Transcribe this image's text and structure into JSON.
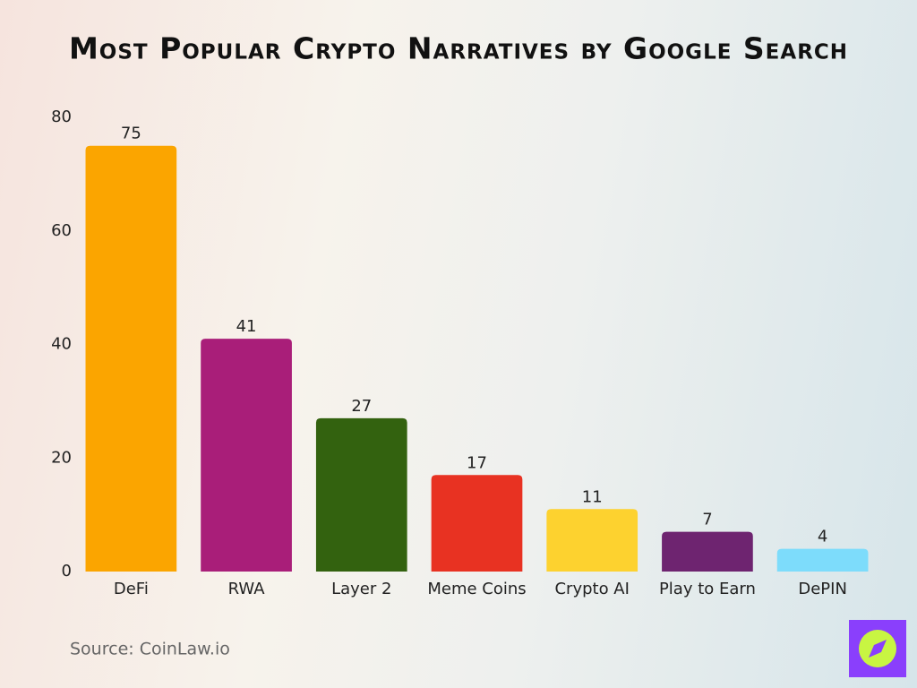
{
  "chart_data": {
    "type": "bar",
    "title": "Most Popular Crypto Narratives by Google Search",
    "categories": [
      "DeFi",
      "RWA",
      "Layer 2",
      "Meme Coins",
      "Crypto AI",
      "Play to Earn",
      "DePIN"
    ],
    "values": [
      75,
      41,
      27,
      17,
      11,
      7,
      4
    ],
    "colors": [
      "#fba500",
      "#a91e79",
      "#33620f",
      "#e83222",
      "#fdd22f",
      "#6e2470",
      "#7ddcfb"
    ],
    "ylim": [
      0,
      80
    ],
    "yticks": [
      0,
      20,
      40,
      60,
      80
    ],
    "grid": false,
    "source": "Source: CoinLaw.io"
  }
}
